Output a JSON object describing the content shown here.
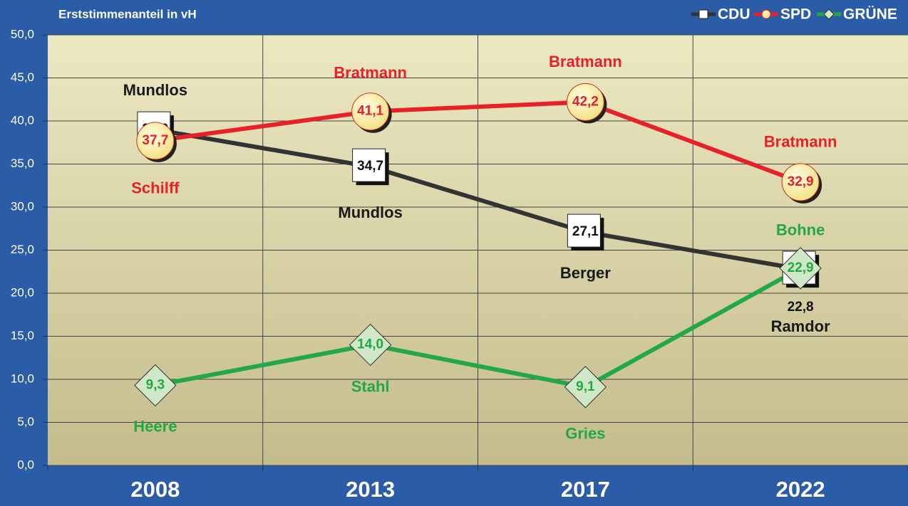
{
  "chart_data": {
    "type": "line",
    "title": "Erststimmenanteil in vH",
    "categories": [
      "2008",
      "2013",
      "2017",
      "2022"
    ],
    "ylim": [
      0,
      50
    ],
    "yticks": [
      {
        "value": 0,
        "label": "0,0"
      },
      {
        "value": 5,
        "label": "5,0"
      },
      {
        "value": 10,
        "label": "10,0"
      },
      {
        "value": 15,
        "label": "15,0"
      },
      {
        "value": 20,
        "label": "20,0"
      },
      {
        "value": 25,
        "label": "25,0"
      },
      {
        "value": 30,
        "label": "30,0"
      },
      {
        "value": 35,
        "label": "35,0"
      },
      {
        "value": 40,
        "label": "40,0"
      },
      {
        "value": 45,
        "label": "45,0"
      },
      {
        "value": 50,
        "label": "50,0"
      }
    ],
    "grid": true,
    "legend": "top-right",
    "series": [
      {
        "name": "CDU",
        "color": "#333333",
        "marker": "square",
        "values": [
          39.0,
          34.7,
          27.1,
          22.8
        ],
        "value_labels": [
          "39,0",
          "34,7",
          "27,1",
          "22,8"
        ],
        "candidates": [
          "Mundlos",
          "Mundlos",
          "Berger",
          "Ramdor"
        ]
      },
      {
        "name": "SPD",
        "color": "#e8202a",
        "marker": "circle",
        "values": [
          37.7,
          41.1,
          42.2,
          32.9
        ],
        "value_labels": [
          "37,7",
          "41,1",
          "42,2",
          "32,9"
        ],
        "candidates": [
          "Schilff",
          "Bratmann",
          "Bratmann",
          "Bratmann"
        ]
      },
      {
        "name": "GRÜNE",
        "color": "#22a845",
        "marker": "diamond",
        "values": [
          9.3,
          14.0,
          9.1,
          22.9
        ],
        "value_labels": [
          "9,3",
          "14,0",
          "9,1",
          "22,9"
        ],
        "candidates": [
          "Heere",
          "Stahl",
          "Gries",
          "Bohne"
        ]
      }
    ]
  }
}
